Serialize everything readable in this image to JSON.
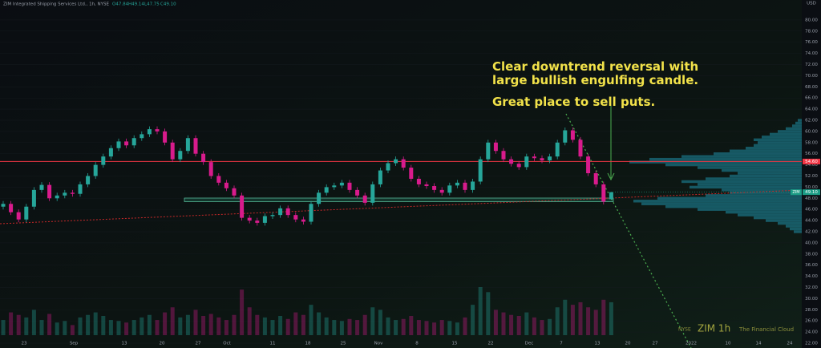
{
  "header": {
    "symbol": "ZIM Integrated Shipping Services Ltd., 1h, NYSE",
    "ohlc": [
      "O47.84",
      "H49.14",
      "L47.75",
      "C49.10"
    ],
    "currency": "USD"
  },
  "chart_data": {
    "type": "candlestick",
    "up_color": "#26a69a",
    "down_color": "#d81b8c",
    "candles": [
      [
        46.5,
        47.5,
        46.0,
        47.0
      ],
      [
        47.0,
        47.5,
        45.0,
        45.5
      ],
      [
        45.5,
        46.0,
        43.7,
        44.2
      ],
      [
        44.2,
        47.0,
        43.7,
        46.5
      ],
      [
        46.5,
        50.0,
        46.0,
        49.5
      ],
      [
        49.5,
        50.9,
        49.0,
        50.4
      ],
      [
        50.4,
        50.9,
        47.5,
        48.0
      ],
      [
        48.0,
        49.0,
        47.5,
        48.5
      ],
      [
        48.5,
        49.5,
        48.0,
        49.0
      ],
      [
        49.0,
        49.5,
        48.3,
        48.8
      ],
      [
        48.8,
        51.0,
        48.3,
        50.5
      ],
      [
        50.5,
        52.5,
        50.0,
        52.0
      ],
      [
        52.0,
        54.5,
        51.5,
        54.0
      ],
      [
        54.0,
        56.0,
        53.5,
        55.5
      ],
      [
        55.5,
        57.5,
        55.0,
        57.0
      ],
      [
        57.0,
        58.7,
        56.5,
        58.2
      ],
      [
        58.2,
        58.7,
        57.0,
        57.5
      ],
      [
        57.5,
        59.3,
        57.0,
        58.8
      ],
      [
        58.8,
        60.0,
        58.3,
        59.5
      ],
      [
        59.5,
        60.9,
        59.0,
        60.4
      ],
      [
        60.4,
        60.9,
        59.5,
        60.0
      ],
      [
        60.0,
        60.5,
        57.5,
        58.0
      ],
      [
        58.0,
        58.5,
        54.5,
        55.0
      ],
      [
        55.0,
        57.0,
        54.5,
        56.5
      ],
      [
        56.5,
        59.3,
        56.0,
        58.8
      ],
      [
        58.8,
        59.3,
        55.5,
        56.0
      ],
      [
        56.0,
        56.5,
        54.0,
        54.5
      ],
      [
        54.5,
        55.0,
        51.5,
        52.0
      ],
      [
        52.0,
        52.5,
        50.3,
        50.8
      ],
      [
        50.8,
        51.3,
        49.3,
        49.8
      ],
      [
        49.8,
        50.3,
        48.0,
        48.5
      ],
      [
        48.5,
        49.0,
        44.0,
        44.5
      ],
      [
        44.5,
        45.0,
        43.5,
        44.0
      ],
      [
        44.0,
        44.5,
        43.1,
        43.6
      ],
      [
        43.6,
        45.3,
        43.1,
        44.8
      ],
      [
        44.8,
        45.5,
        44.3,
        45.0
      ],
      [
        45.0,
        46.7,
        44.5,
        46.2
      ],
      [
        46.2,
        46.7,
        44.5,
        45.0
      ],
      [
        45.0,
        45.5,
        43.7,
        44.2
      ],
      [
        44.2,
        44.7,
        43.3,
        43.8
      ],
      [
        43.8,
        47.5,
        43.3,
        47.0
      ],
      [
        47.0,
        49.5,
        46.5,
        49.0
      ],
      [
        49.0,
        50.5,
        48.5,
        50.0
      ],
      [
        50.0,
        50.8,
        49.5,
        50.3
      ],
      [
        50.3,
        51.3,
        49.8,
        50.8
      ],
      [
        50.8,
        51.3,
        49.0,
        49.5
      ],
      [
        49.5,
        50.0,
        48.0,
        48.5
      ],
      [
        48.5,
        49.0,
        46.7,
        47.2
      ],
      [
        47.2,
        51.0,
        46.7,
        50.5
      ],
      [
        50.5,
        53.5,
        50.0,
        53.0
      ],
      [
        53.0,
        54.8,
        52.5,
        54.3
      ],
      [
        54.3,
        55.5,
        53.8,
        55.0
      ],
      [
        55.0,
        55.5,
        53.0,
        53.5
      ],
      [
        53.5,
        54.0,
        51.0,
        51.5
      ],
      [
        51.5,
        52.0,
        50.0,
        50.5
      ],
      [
        50.5,
        51.0,
        49.7,
        50.2
      ],
      [
        50.2,
        50.7,
        49.0,
        49.5
      ],
      [
        49.5,
        50.0,
        48.5,
        49.0
      ],
      [
        49.0,
        50.8,
        48.5,
        50.3
      ],
      [
        50.3,
        51.3,
        49.8,
        50.8
      ],
      [
        50.8,
        51.3,
        49.0,
        49.5
      ],
      [
        49.5,
        51.5,
        49.0,
        51.0
      ],
      [
        51.0,
        55.5,
        50.5,
        55.0
      ],
      [
        55.0,
        58.5,
        54.5,
        58.0
      ],
      [
        58.0,
        58.5,
        56.0,
        56.5
      ],
      [
        56.5,
        57.0,
        54.5,
        55.0
      ],
      [
        55.0,
        55.5,
        53.7,
        54.2
      ],
      [
        54.2,
        54.7,
        53.1,
        53.6
      ],
      [
        53.6,
        56.0,
        53.1,
        55.5
      ],
      [
        55.5,
        56.0,
        54.7,
        55.2
      ],
      [
        55.2,
        55.7,
        54.3,
        54.8
      ],
      [
        54.8,
        56.0,
        54.3,
        55.5
      ],
      [
        55.5,
        58.5,
        55.0,
        58.0
      ],
      [
        58.0,
        60.7,
        57.5,
        60.2
      ],
      [
        60.2,
        60.7,
        58.0,
        58.5
      ],
      [
        58.5,
        59.0,
        55.0,
        55.5
      ],
      [
        55.5,
        56.0,
        52.0,
        52.5
      ],
      [
        52.5,
        53.0,
        50.0,
        50.5
      ],
      [
        50.5,
        51.0,
        46.9,
        47.4
      ],
      [
        47.84,
        49.14,
        47.75,
        49.1
      ]
    ],
    "volume": [
      30,
      45,
      40,
      35,
      50,
      30,
      42,
      25,
      28,
      20,
      35,
      40,
      45,
      38,
      30,
      28,
      25,
      30,
      35,
      40,
      30,
      45,
      55,
      35,
      40,
      50,
      38,
      42,
      35,
      30,
      40,
      90,
      55,
      40,
      35,
      30,
      38,
      32,
      45,
      40,
      60,
      45,
      35,
      30,
      28,
      32,
      30,
      40,
      55,
      50,
      35,
      30,
      32,
      38,
      30,
      28,
      25,
      30,
      28,
      25,
      35,
      60,
      95,
      85,
      50,
      45,
      40,
      38,
      45,
      35,
      30,
      32,
      55,
      70,
      60,
      65,
      55,
      50,
      70,
      65
    ],
    "ylim": [
      21,
      81
    ],
    "yticks": [
      {
        "value": 80,
        "label": "80.00"
      },
      {
        "value": 78,
        "label": "78.00"
      },
      {
        "value": 76,
        "label": "76.00"
      },
      {
        "value": 74,
        "label": "74.00"
      },
      {
        "value": 72,
        "label": "72.00"
      },
      {
        "value": 70,
        "label": "70.00"
      },
      {
        "value": 68,
        "label": "68.00"
      },
      {
        "value": 66,
        "label": "66.00"
      },
      {
        "value": 64,
        "label": "64.00"
      },
      {
        "value": 62,
        "label": "62.00"
      },
      {
        "value": 60,
        "label": "60.00"
      },
      {
        "value": 58,
        "label": "58.00"
      },
      {
        "value": 56,
        "label": "56.00"
      },
      {
        "value": 54,
        "label": "54.00"
      },
      {
        "value": 52,
        "label": "52.00"
      },
      {
        "value": 50,
        "label": "50.00"
      },
      {
        "value": 48,
        "label": "48.00"
      },
      {
        "value": 46,
        "label": "46.00"
      },
      {
        "value": 44,
        "label": "44.00"
      },
      {
        "value": 42,
        "label": "42.00"
      },
      {
        "value": 40,
        "label": "40.00"
      },
      {
        "value": 38,
        "label": "38.00"
      },
      {
        "value": 36,
        "label": "36.00"
      },
      {
        "value": 34,
        "label": "34.00"
      },
      {
        "value": 32,
        "label": "32.00"
      },
      {
        "value": 30,
        "label": "30.00"
      },
      {
        "value": 28,
        "label": "28.00"
      },
      {
        "value": 26,
        "label": "26.00"
      },
      {
        "value": 24,
        "label": "24.00"
      },
      {
        "value": 22,
        "label": "22.00"
      }
    ],
    "grid": true,
    "x_labels": [
      "23",
      "Sep",
      "13",
      "20",
      "27",
      "Oct",
      "11",
      "18",
      "25",
      "Nov",
      "8",
      "15",
      "22",
      "Dec",
      "7",
      "13",
      "20",
      "27",
      "2022",
      "10",
      "14",
      "24"
    ],
    "price_lines": [
      {
        "value": 54.6,
        "label": "54.60",
        "color": "#f23645"
      }
    ],
    "last_price": {
      "value": 49.1,
      "label": "49.10",
      "tag": "ZIM",
      "color": "#1b9c85"
    },
    "profile_color": "#1f8fa8",
    "profile_prices": [
      42,
      42.5,
      43,
      43.5,
      44,
      44.5,
      45,
      45.5,
      46,
      46.5,
      47,
      47.5,
      48,
      48.5,
      49,
      49.5,
      50,
      50.5,
      51,
      51.5,
      52,
      52.5,
      53,
      53.5,
      54,
      54.5,
      55,
      55.5,
      56,
      56.5,
      57,
      57.5,
      58,
      58.5,
      59,
      59.5,
      60,
      60.5,
      61,
      61.5,
      62
    ],
    "profile_values": [
      10,
      15,
      20,
      30,
      45,
      60,
      80,
      95,
      130,
      170,
      200,
      210,
      180,
      120,
      90,
      100,
      140,
      130,
      150,
      120,
      90,
      80,
      100,
      130,
      170,
      215,
      190,
      150,
      110,
      90,
      70,
      60,
      55,
      60,
      50,
      40,
      30,
      20,
      12,
      8,
      5
    ],
    "annotations": [
      "Clear downtrend reversal with",
      "large bullish engulfing candle.",
      "Great place to sell puts."
    ],
    "watermark": {
      "exchange": "NYSE",
      "symbol": "ZIM 1h",
      "author": "The Financial Cloud"
    }
  }
}
